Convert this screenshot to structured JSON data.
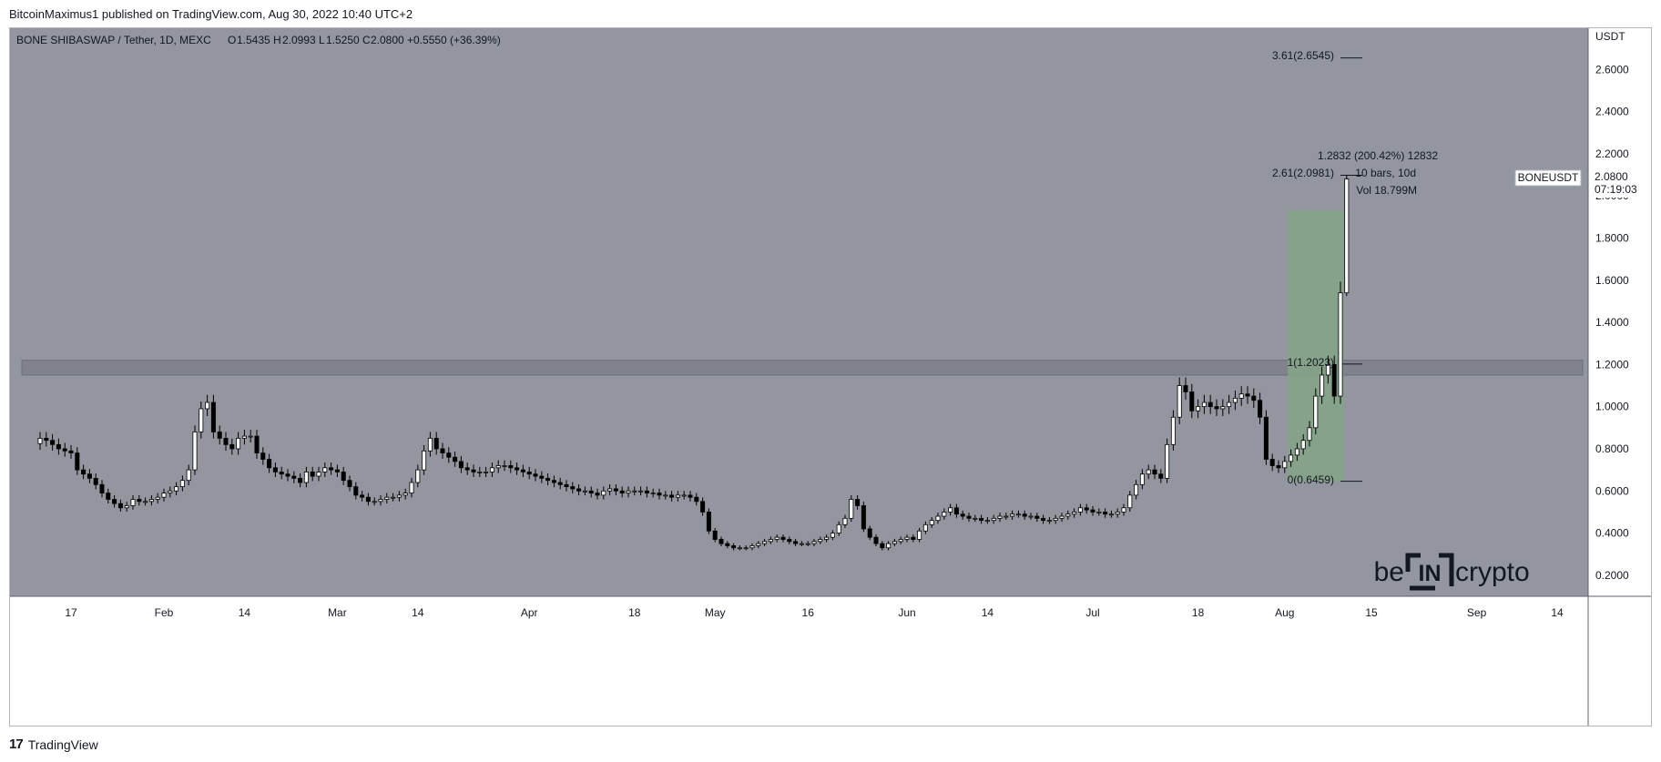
{
  "header": {
    "publisher_line": "BitcoinMaximus1 published on TradingView.com, Aug 30, 2022 10:40 UTC+2"
  },
  "footer": {
    "brand": "TradingView"
  },
  "legend": {
    "symbol": "BONE SHIBASWAP / Tether, 1D, MEXC",
    "o_label": "O",
    "o_value": "1.5435",
    "h_label": "H",
    "h_value": "2.0993",
    "l_label": "L",
    "l_value": "1.5250",
    "c_label": "C",
    "c_value": "2.0800",
    "change": "+0.5550 (+36.39%)"
  },
  "price_axis": {
    "currency": "USDT"
  },
  "last_price": {
    "symbol": "BONEUSDT",
    "price": "2.0800",
    "countdown": "07:19:03"
  },
  "watermark": {
    "left": "be",
    "middle": "IN",
    "right": "crypto"
  },
  "annotations": {
    "fib_361": "3.61(2.6545)",
    "fib_261": "2.61(2.0981)",
    "fib_1": "1(1.2023)",
    "fib_0": "0(0.6459)",
    "measure_line1": "1.2832 (200.42%) 12832",
    "measure_line2": "10 bars, 10d",
    "measure_line3": "Vol 18.799M"
  },
  "colors": {
    "background": "#93969f",
    "measure_box": "#85a387",
    "resistance_band": "#7c7f89",
    "candle_body_up": "#ffffff",
    "candle_body_down": "#000000",
    "wick": "#000000"
  },
  "chart_data": {
    "type": "candlestick",
    "symbol": "BONE SHIBASWAP / Tether",
    "timeframe": "1D",
    "exchange": "MEXC",
    "y_unit": "USDT",
    "ylim": [
      0.1,
      2.8
    ],
    "y_ticks": [
      "0.2000",
      "0.4000",
      "0.6000",
      "0.8000",
      "1.0000",
      "1.2000",
      "1.4000",
      "1.6000",
      "1.8000",
      "2.0000",
      "2.2000",
      "2.4000",
      "2.6000"
    ],
    "x_start": "2022-01-07",
    "x_end": "2022-09-19",
    "x_ticks": [
      {
        "date": "2022-01-17",
        "label": "17"
      },
      {
        "date": "2022-02-01",
        "label": "Feb"
      },
      {
        "date": "2022-02-14",
        "label": "14"
      },
      {
        "date": "2022-03-01",
        "label": "Mar"
      },
      {
        "date": "2022-03-14",
        "label": "14"
      },
      {
        "date": "2022-04-01",
        "label": "Apr"
      },
      {
        "date": "2022-04-18",
        "label": "18"
      },
      {
        "date": "2022-05-01",
        "label": "May"
      },
      {
        "date": "2022-05-16",
        "label": "16"
      },
      {
        "date": "2022-06-01",
        "label": "Jun"
      },
      {
        "date": "2022-06-14",
        "label": "14"
      },
      {
        "date": "2022-07-01",
        "label": "Jul"
      },
      {
        "date": "2022-07-18",
        "label": "18"
      },
      {
        "date": "2022-08-01",
        "label": "Aug"
      },
      {
        "date": "2022-08-15",
        "label": "15"
      },
      {
        "date": "2022-09-01",
        "label": "Sep"
      },
      {
        "date": "2022-09-14",
        "label": "14"
      }
    ],
    "candles_start": "2022-01-12",
    "closes": [
      0.85,
      0.84,
      0.82,
      0.8,
      0.79,
      0.78,
      0.7,
      0.68,
      0.66,
      0.63,
      0.59,
      0.56,
      0.54,
      0.52,
      0.53,
      0.56,
      0.55,
      0.55,
      0.56,
      0.57,
      0.59,
      0.6,
      0.62,
      0.65,
      0.7,
      0.88,
      0.99,
      1.02,
      0.88,
      0.85,
      0.82,
      0.8,
      0.85,
      0.86,
      0.86,
      0.78,
      0.75,
      0.71,
      0.69,
      0.68,
      0.67,
      0.66,
      0.64,
      0.69,
      0.67,
      0.69,
      0.71,
      0.7,
      0.69,
      0.65,
      0.62,
      0.58,
      0.57,
      0.55,
      0.55,
      0.56,
      0.57,
      0.57,
      0.58,
      0.59,
      0.64,
      0.7,
      0.79,
      0.85,
      0.8,
      0.78,
      0.76,
      0.74,
      0.71,
      0.7,
      0.69,
      0.69,
      0.69,
      0.71,
      0.72,
      0.72,
      0.71,
      0.7,
      0.69,
      0.68,
      0.67,
      0.66,
      0.65,
      0.64,
      0.63,
      0.62,
      0.61,
      0.6,
      0.6,
      0.59,
      0.58,
      0.6,
      0.61,
      0.6,
      0.59,
      0.6,
      0.6,
      0.6,
      0.59,
      0.59,
      0.58,
      0.58,
      0.57,
      0.58,
      0.58,
      0.57,
      0.55,
      0.5,
      0.41,
      0.37,
      0.35,
      0.34,
      0.33,
      0.33,
      0.33,
      0.34,
      0.35,
      0.36,
      0.37,
      0.38,
      0.37,
      0.36,
      0.35,
      0.35,
      0.35,
      0.36,
      0.37,
      0.38,
      0.4,
      0.44,
      0.47,
      0.56,
      0.53,
      0.42,
      0.38,
      0.35,
      0.33,
      0.35,
      0.36,
      0.37,
      0.38,
      0.37,
      0.41,
      0.44,
      0.46,
      0.48,
      0.5,
      0.52,
      0.49,
      0.48,
      0.47,
      0.47,
      0.46,
      0.46,
      0.47,
      0.48,
      0.48,
      0.49,
      0.49,
      0.48,
      0.48,
      0.47,
      0.46,
      0.46,
      0.47,
      0.48,
      0.49,
      0.5,
      0.52,
      0.51,
      0.5,
      0.5,
      0.49,
      0.49,
      0.5,
      0.52,
      0.58,
      0.63,
      0.68,
      0.7,
      0.68,
      0.66,
      0.82,
      0.95,
      1.1,
      1.07,
      0.98,
      1.0,
      1.02,
      1.0,
      0.99,
      1.0,
      1.02,
      1.04,
      1.06,
      1.05,
      1.03,
      0.95,
      0.75,
      0.72,
      0.71,
      0.74,
      0.77,
      0.8,
      0.84,
      0.9,
      1.05,
      1.15,
      1.2,
      1.05,
      1.54,
      2.08
    ],
    "fib_levels": [
      {
        "ratio": "3.61",
        "price": 2.6545
      },
      {
        "ratio": "2.61",
        "price": 2.0981
      },
      {
        "ratio": "1",
        "price": 1.2023
      },
      {
        "ratio": "0",
        "price": 0.6459
      }
    ],
    "resistance_zone": [
      1.15,
      1.22
    ],
    "measurement": {
      "change": 1.2832,
      "percent": 200.42,
      "bars": 10,
      "days": 10,
      "volume": "18.799M",
      "range": [
        0.6459,
        1.93
      ]
    },
    "last": {
      "symbol": "BONEUSDT",
      "open": 1.5435,
      "high": 2.0993,
      "low": 1.525,
      "close": 2.08,
      "change": 0.555,
      "change_pct": 36.39
    }
  }
}
